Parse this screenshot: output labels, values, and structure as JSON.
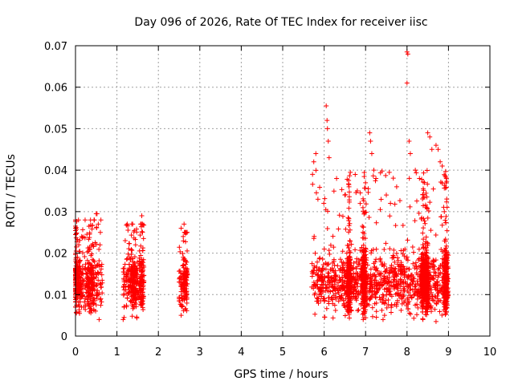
{
  "chart_data": {
    "type": "scatter",
    "title": "Day 096 of 2026, Rate Of TEC Index for receiver iisc",
    "xlabel": "GPS time / hours",
    "ylabel": "ROTI / TECUs",
    "xlim": [
      0,
      10
    ],
    "ylim": [
      0,
      0.07
    ],
    "x_ticks": [
      0,
      1,
      2,
      3,
      4,
      5,
      6,
      7,
      8,
      9,
      10
    ],
    "x_tick_labels": [
      "0",
      "1",
      "2",
      "3",
      "4",
      "5",
      "6",
      "7",
      "8",
      "9",
      "10"
    ],
    "y_ticks": [
      0,
      0.01,
      0.02,
      0.03,
      0.04,
      0.05,
      0.06,
      0.07
    ],
    "y_tick_labels": [
      "0",
      "0.01",
      "0.02",
      "0.03",
      "0.04",
      "0.05",
      "0.06",
      "0.07"
    ],
    "grid": true,
    "marker": "+",
    "marker_color": "#ff0000",
    "series": [
      {
        "name": "ROTI",
        "segments": [
          {
            "x_start": 0.0,
            "x_end": 0.65,
            "y_min": 0.004,
            "y_max": 0.03
          },
          {
            "x_start": 1.15,
            "x_end": 1.65,
            "y_min": 0.004,
            "y_max": 0.029
          },
          {
            "x_start": 2.5,
            "x_end": 2.7,
            "y_min": 0.005,
            "y_max": 0.027
          },
          {
            "x_start": 5.7,
            "x_end": 9.0,
            "y_min": 0.004,
            "y_max": 0.068
          }
        ],
        "points": [
          [
            0.02,
            0.0215
          ],
          [
            0.05,
            0.019
          ],
          [
            0.08,
            0.022
          ],
          [
            0.1,
            0.016
          ],
          [
            0.15,
            0.024
          ],
          [
            0.2,
            0.007
          ],
          [
            0.3,
            0.012
          ],
          [
            0.4,
            0.015
          ],
          [
            0.5,
            0.0295
          ],
          [
            0.52,
            0.0295
          ],
          [
            0.55,
            0.027
          ],
          [
            0.6,
            0.025
          ],
          [
            0.57,
            0.004
          ],
          [
            1.15,
            0.004
          ],
          [
            1.2,
            0.023
          ],
          [
            1.3,
            0.019
          ],
          [
            1.45,
            0.022
          ],
          [
            1.6,
            0.029
          ],
          [
            1.62,
            0.027
          ],
          [
            2.55,
            0.026
          ],
          [
            2.6,
            0.024
          ],
          [
            2.62,
            0.027
          ],
          [
            2.55,
            0.005
          ],
          [
            5.72,
            0.039
          ],
          [
            5.75,
            0.042
          ],
          [
            5.8,
            0.044
          ],
          [
            5.85,
            0.033
          ],
          [
            6.05,
            0.0555
          ],
          [
            6.07,
            0.052
          ],
          [
            6.08,
            0.05
          ],
          [
            6.1,
            0.047
          ],
          [
            6.12,
            0.043
          ],
          [
            6.3,
            0.038
          ],
          [
            6.5,
            0.034
          ],
          [
            6.6,
            0.036
          ],
          [
            6.8,
            0.035
          ],
          [
            7.1,
            0.049
          ],
          [
            7.12,
            0.047
          ],
          [
            7.15,
            0.044
          ],
          [
            7.2,
            0.04
          ],
          [
            7.25,
            0.038
          ],
          [
            7.5,
            0.034
          ],
          [
            7.6,
            0.032
          ],
          [
            7.75,
            0.036
          ],
          [
            8.0,
            0.0685
          ],
          [
            8.02,
            0.068
          ],
          [
            8.0,
            0.061
          ],
          [
            8.05,
            0.047
          ],
          [
            8.08,
            0.044
          ],
          [
            8.2,
            0.04
          ],
          [
            8.3,
            0.038
          ],
          [
            8.5,
            0.049
          ],
          [
            8.55,
            0.048
          ],
          [
            8.6,
            0.045
          ],
          [
            8.7,
            0.046
          ],
          [
            8.75,
            0.045
          ],
          [
            8.8,
            0.042
          ],
          [
            8.85,
            0.041
          ],
          [
            8.7,
            0.0035
          ],
          [
            8.9,
            0.03
          ]
        ]
      }
    ]
  }
}
